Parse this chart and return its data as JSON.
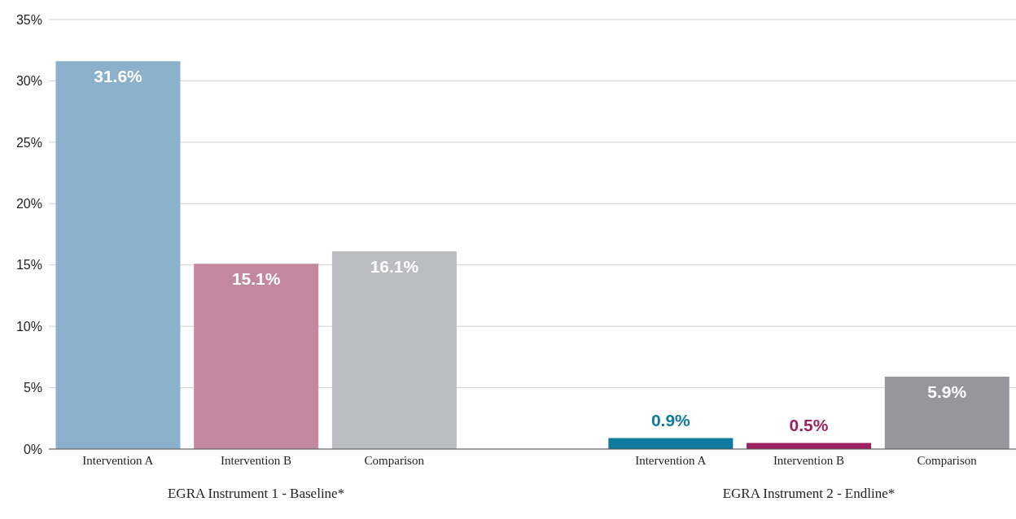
{
  "chart_data": {
    "type": "bar",
    "categories": [
      "Intervention A",
      "Intervention B",
      "Comparison",
      null,
      "Intervention A",
      "Intervention B",
      "Comparison"
    ],
    "values": [
      31.6,
      15.1,
      16.1,
      null,
      0.9,
      0.5,
      5.9
    ],
    "colors": [
      "#8ab0cb",
      "#c3879e",
      "#bcbdc1",
      "#ffffff",
      "#0e7a9e",
      "#9b2160",
      "#97979b"
    ],
    "value_labels": [
      "31.6%",
      "15.1%",
      "16.1%",
      null,
      "0.9%",
      "0.5%",
      "5.9%"
    ],
    "ylim": [
      0,
      35
    ],
    "yticks": [
      {
        "value": 0,
        "label": "0%"
      },
      {
        "value": 5,
        "label": "5%"
      },
      {
        "value": 10,
        "label": "10%"
      },
      {
        "value": 15,
        "label": "15%"
      },
      {
        "value": 20,
        "label": "20%"
      },
      {
        "value": 25,
        "label": "25%"
      },
      {
        "value": 30,
        "label": "30%"
      },
      {
        "value": 35,
        "label": "35%"
      }
    ],
    "grid": "y",
    "legend": false,
    "annotations": [
      "EGRA Instrument 1 - Baseline*",
      "EGRA Instrument 2 - Endline*"
    ]
  }
}
